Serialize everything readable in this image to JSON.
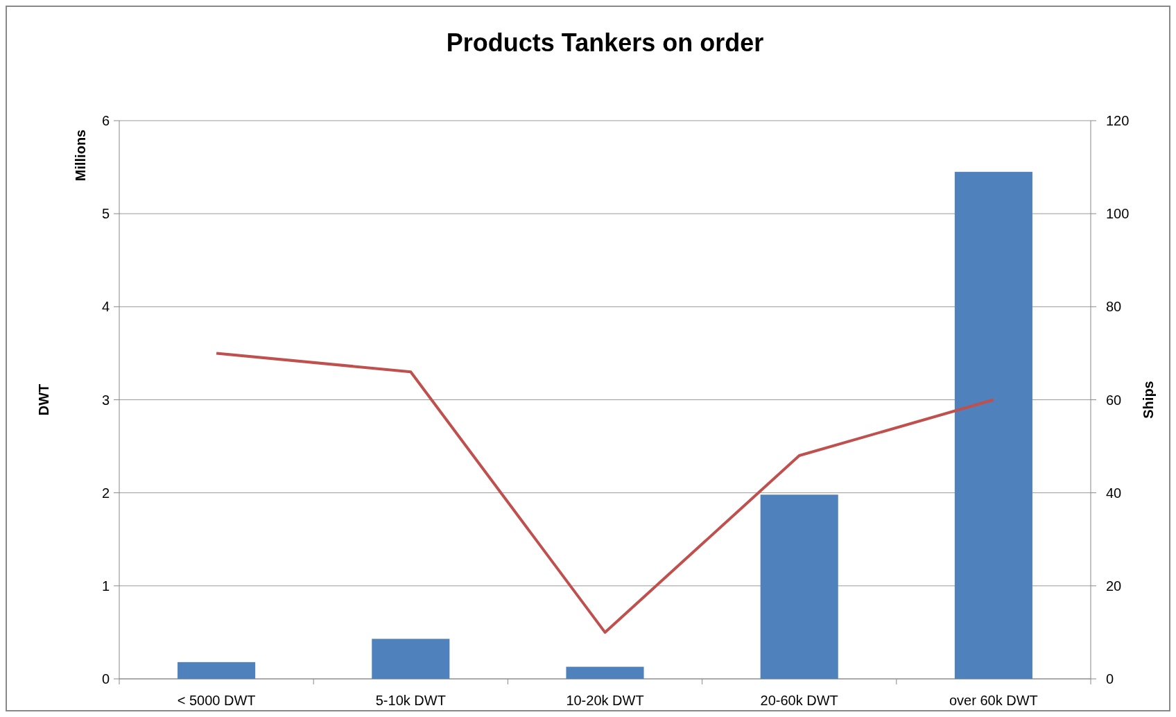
{
  "chart_data": {
    "type": "bar",
    "title": "Products Tankers on order",
    "ylabel": "DWT",
    "y2label": "Ships",
    "annotations": [
      "Millions"
    ],
    "categories": [
      "< 5000 DWT",
      "5-10k DWT",
      "10-20k DWT",
      "20-60k DWT",
      "over 60k DWT"
    ],
    "series": [
      {
        "color": "#4f81bd",
        "values": [
          0.18,
          0.43,
          0.13,
          1.98,
          5.45
        ]
      },
      {
        "type": "line",
        "axis": "y2",
        "color": "#c0504d",
        "values": [
          70,
          66,
          10,
          48,
          60
        ]
      }
    ],
    "ylim": [
      0,
      6
    ],
    "yticks": [
      0,
      1,
      2,
      3,
      4,
      5,
      6
    ],
    "y2lim": [
      0,
      120
    ],
    "y2ticks": [
      0,
      20,
      40,
      60,
      80,
      100,
      120
    ],
    "grid": "y",
    "marker": "none",
    "line_style": "solid"
  }
}
